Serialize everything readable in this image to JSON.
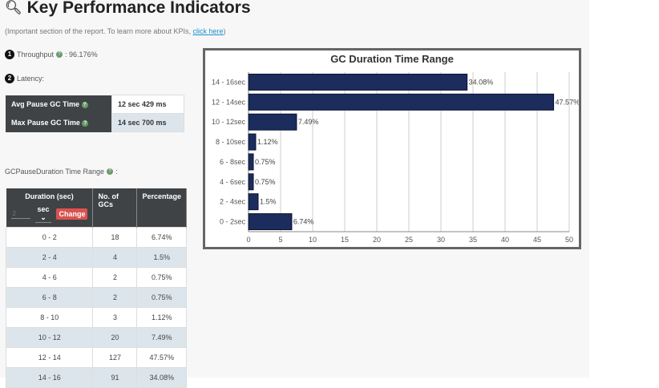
{
  "header": {
    "title": "Key Performance Indicators",
    "subtitle": "(Important section of the report. To learn more about KPIs, ",
    "link": "click here",
    "subtitle_end": ")"
  },
  "throughput": {
    "num": "1",
    "label": "Throughput",
    "value": " : 96.176%"
  },
  "latency": {
    "num": "2",
    "label": "Latency:",
    "rows": [
      {
        "label": "Avg Pause GC Time",
        "value": "12 sec 429 ms"
      },
      {
        "label": "Max Pause GC Time",
        "value": "14 sec 700 ms"
      }
    ]
  },
  "range_title": "GCPauseDuration Time Range",
  "table": {
    "headers": [
      "Duration (sec)",
      "No. of GCs",
      "Percentage"
    ],
    "input_placeholder": "2",
    "unit": "sec",
    "change": "Change",
    "rows": [
      [
        "0 - 2",
        "18",
        "6.74%"
      ],
      [
        "2 - 4",
        "4",
        "1.5%"
      ],
      [
        "4 - 6",
        "2",
        "0.75%"
      ],
      [
        "6 - 8",
        "2",
        "0.75%"
      ],
      [
        "8 - 10",
        "3",
        "1.12%"
      ],
      [
        "10 - 12",
        "20",
        "7.49%"
      ],
      [
        "12 - 14",
        "127",
        "47.57%"
      ],
      [
        "14 - 16",
        "91",
        "34.08%"
      ]
    ]
  },
  "chart_data": {
    "type": "bar",
    "orientation": "horizontal",
    "title": "GC Duration Time Range",
    "categories": [
      "14 - 16sec",
      "12 - 14sec",
      "10 - 12sec",
      "8 - 10sec",
      "6 - 8sec",
      "4 - 6sec",
      "2 - 4sec",
      "0 - 2sec"
    ],
    "values": [
      34.08,
      47.57,
      7.49,
      1.12,
      0.75,
      0.75,
      1.5,
      6.74
    ],
    "labels": [
      "34.08%",
      "47.57%",
      "7.49%",
      "1.12%",
      "0.75%",
      "0.75%",
      "1.5%",
      "6.74%"
    ],
    "xlim": [
      0,
      50
    ],
    "xticks": [
      0,
      5,
      10,
      15,
      20,
      25,
      30,
      35,
      40,
      45,
      50
    ],
    "grid": true,
    "bar_color": "#1c2c5c"
  }
}
